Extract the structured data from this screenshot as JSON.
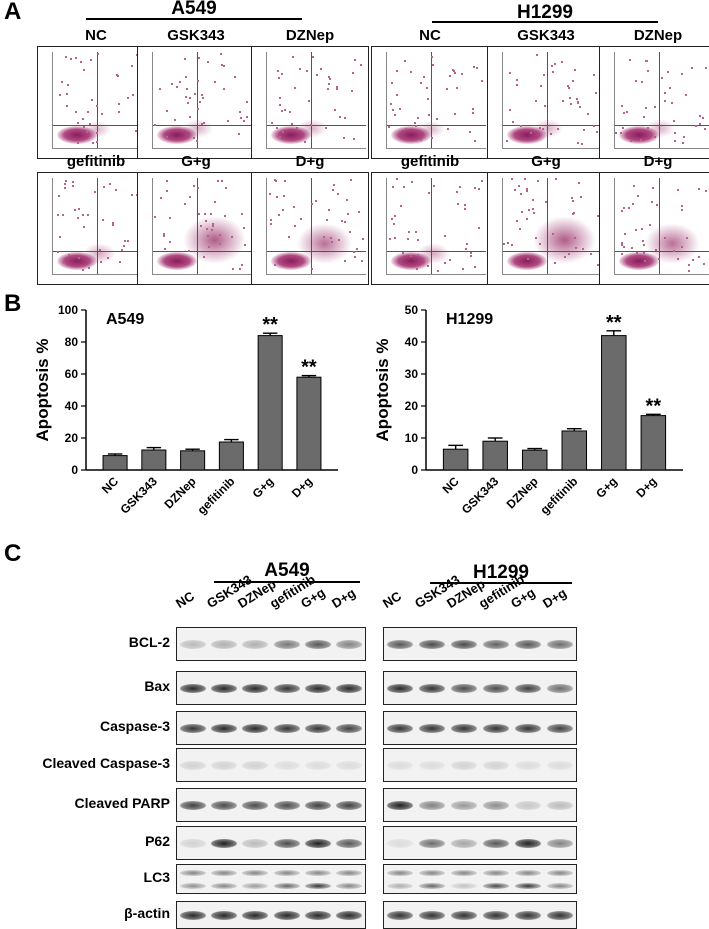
{
  "panel_labels": {
    "a": "A",
    "b": "B",
    "c": "C"
  },
  "groups": {
    "a549": "A549",
    "h1299": "H1299"
  },
  "treatments": [
    "NC",
    "GSK343",
    "DZNep",
    "gefitinib",
    "G+g",
    "D+g"
  ],
  "chart_data": [
    {
      "type": "bar",
      "title": "A549",
      "ylabel": "Apoptosis %",
      "categories": [
        "NC",
        "GSK343",
        "DZNep",
        "gefitinib",
        "G+g",
        "D+g"
      ],
      "values": [
        9,
        12.5,
        12,
        17.5,
        84,
        58
      ],
      "errors": [
        1,
        1.5,
        1,
        1.5,
        1.5,
        1
      ],
      "significance": [
        "",
        "",
        "",
        "",
        "**",
        "**"
      ],
      "ylim": [
        0,
        100
      ],
      "yticks": [
        0,
        20,
        40,
        60,
        80,
        100
      ],
      "grid": false,
      "color": "#6b6b6b"
    },
    {
      "type": "bar",
      "title": "H1299",
      "ylabel": "Apoptosis %",
      "categories": [
        "NC",
        "GSK343",
        "DZNep",
        "gefitinib",
        "G+g",
        "D+g"
      ],
      "values": [
        6.5,
        9,
        6.2,
        12.2,
        42,
        17
      ],
      "errors": [
        1.2,
        1,
        0.5,
        0.7,
        1.5,
        0.4
      ],
      "significance": [
        "",
        "",
        "",
        "",
        "**",
        "**"
      ],
      "ylim": [
        0,
        50
      ],
      "yticks": [
        0,
        10,
        20,
        30,
        40,
        50
      ],
      "grid": false,
      "color": "#6b6b6b"
    }
  ],
  "western_blot": {
    "rows": [
      "BCL-2",
      "Bax",
      "Caspase-3",
      "Cleaved  Caspase-3",
      "Cleaved  PARP",
      "P62",
      "LC3",
      "β-actin"
    ],
    "a549_intensity": [
      [
        0.25,
        0.3,
        0.3,
        0.55,
        0.7,
        0.5
      ],
      [
        0.9,
        0.9,
        0.9,
        0.85,
        0.9,
        0.9
      ],
      [
        0.85,
        0.9,
        0.9,
        0.85,
        0.85,
        0.8
      ],
      [
        0.15,
        0.15,
        0.15,
        0.1,
        0.1,
        0.1
      ],
      [
        0.8,
        0.75,
        0.75,
        0.75,
        0.8,
        0.8
      ],
      [
        0.15,
        0.95,
        0.25,
        0.75,
        0.95,
        0.7
      ],
      [
        0.5,
        0.55,
        0.45,
        0.7,
        0.95,
        0.55
      ],
      [
        0.9,
        0.9,
        0.9,
        0.9,
        0.9,
        0.9
      ]
    ],
    "h1299_intensity": [
      [
        0.7,
        0.75,
        0.75,
        0.65,
        0.7,
        0.6
      ],
      [
        0.9,
        0.85,
        0.75,
        0.75,
        0.8,
        0.6
      ],
      [
        0.85,
        0.85,
        0.85,
        0.85,
        0.85,
        0.8
      ],
      [
        0.1,
        0.1,
        0.15,
        0.15,
        0.1,
        0.1
      ],
      [
        0.95,
        0.5,
        0.4,
        0.45,
        0.2,
        0.25
      ],
      [
        0.1,
        0.6,
        0.35,
        0.7,
        0.95,
        0.5
      ],
      [
        0.35,
        0.7,
        0.25,
        0.85,
        0.95,
        0.55
      ],
      [
        0.85,
        0.85,
        0.85,
        0.85,
        0.85,
        0.85
      ]
    ]
  }
}
